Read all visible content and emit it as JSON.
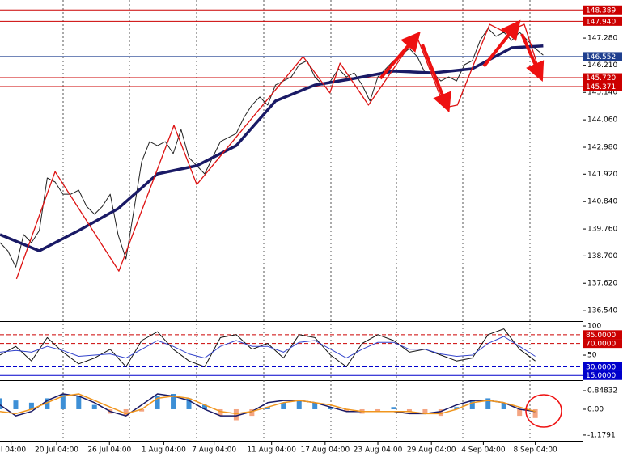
{
  "chart_data": [
    {
      "type": "line",
      "xlim": [
        0,
        74
      ],
      "ylim": [
        136.13,
        148.78
      ],
      "yticks": [
        {
          "value": 147.28,
          "label": "147.280"
        },
        {
          "value": 146.21,
          "label": "146.210"
        },
        {
          "value": 145.14,
          "label": "145.140"
        },
        {
          "value": 144.06,
          "label": "144.060"
        },
        {
          "value": 142.98,
          "label": "142.980"
        },
        {
          "value": 141.92,
          "label": "141.920"
        },
        {
          "value": 140.84,
          "label": "140.840"
        },
        {
          "value": 139.76,
          "label": "139.760"
        },
        {
          "value": 138.7,
          "label": "138.700"
        },
        {
          "value": 137.62,
          "label": "137.620"
        },
        {
          "value": 136.54,
          "label": "136.540"
        }
      ],
      "xticks": [
        {
          "value": 1.4,
          "label": "ul 04:00"
        },
        {
          "value": 7.2,
          "label": "20 Jul 04:00"
        },
        {
          "value": 13.9,
          "label": "26 Jul 04:00"
        },
        {
          "value": 20.8,
          "label": "1 Aug 04:00"
        },
        {
          "value": 27.2,
          "label": "7 Aug 04:00"
        },
        {
          "value": 34.5,
          "label": "11 Aug 04:00"
        },
        {
          "value": 41.3,
          "label": "17 Aug 04:00"
        },
        {
          "value": 48,
          "label": "23 Aug 04:00"
        },
        {
          "value": 54.8,
          "label": "29 Aug 04:00"
        },
        {
          "value": 61.4,
          "label": "4 Sep 04:00"
        },
        {
          "value": 68,
          "label": "8 Sep 04:00"
        }
      ],
      "levels": [
        {
          "value": 148.389,
          "label": "148.389",
          "color": "#cc0000"
        },
        {
          "value": 147.94,
          "label": "147.940",
          "color": "#cc0000"
        },
        {
          "value": 146.552,
          "label": "146.552",
          "color": "#1f3f8f"
        },
        {
          "value": 145.72,
          "label": "145.720",
          "color": "#cc0000"
        },
        {
          "value": 145.371,
          "label": "145.371",
          "color": "#cc0000"
        }
      ],
      "series": [
        {
          "color": "#222222",
          "width": 1,
          "x": [
            0,
            1,
            2,
            3,
            4,
            5,
            6,
            7,
            8,
            9,
            10,
            11,
            12,
            13,
            14,
            15,
            16,
            17,
            18,
            19,
            20,
            21,
            22,
            23,
            24,
            25,
            26,
            27,
            28,
            29,
            30,
            31,
            32,
            33,
            34,
            35,
            36,
            37,
            38,
            39,
            40,
            41,
            42,
            43,
            44,
            45,
            46,
            47,
            48,
            49,
            50,
            51,
            52,
            53,
            54,
            55,
            56,
            57,
            58,
            59,
            60,
            61,
            62,
            63,
            64,
            65,
            66,
            67,
            68,
            69
          ],
          "values": [
            139.22,
            138.9,
            138.26,
            139.54,
            139.22,
            139.7,
            141.77,
            141.61,
            141.13,
            141.13,
            141.29,
            140.65,
            140.34,
            140.65,
            141.13,
            139.54,
            138.58,
            140.49,
            142.41,
            143.2,
            143.04,
            143.2,
            142.73,
            143.68,
            142.57,
            142.25,
            141.93,
            142.57,
            143.2,
            143.36,
            143.52,
            144.16,
            144.64,
            144.96,
            144.64,
            145.43,
            145.59,
            145.75,
            146.23,
            146.39,
            145.75,
            145.43,
            145.59,
            146.07,
            145.75,
            145.91,
            145.43,
            144.8,
            145.75,
            146.07,
            146.39,
            146.61,
            146.87,
            146.55,
            145.91,
            145.91,
            145.59,
            145.75,
            145.59,
            146.23,
            146.39,
            147.19,
            147.66,
            147.35,
            147.51,
            147.19,
            147.51,
            147.19,
            146.87,
            146.61
          ]
        },
        {
          "color": "#1a1a66",
          "width": 3.5,
          "x": [
            0,
            5,
            10,
            15,
            20,
            25,
            30,
            35,
            40,
            45,
            50,
            55,
            60,
            65,
            69
          ],
          "values": [
            139.54,
            138.9,
            139.7,
            140.56,
            141.93,
            142.25,
            143.04,
            144.8,
            145.43,
            145.69,
            145.98,
            145.91,
            146.07,
            146.9,
            146.97
          ]
        },
        {
          "color": "#dd1111",
          "width": 1.3,
          "x": [
            2.1,
            7,
            15.1,
            22.1,
            25,
            38.5,
            41.9,
            43.2,
            46.8,
            52.9,
            56.5,
            58.1,
            62.2,
            64.2,
            66.6,
            68.7
          ],
          "values": [
            137.79,
            142.02,
            138.1,
            143.84,
            141.51,
            146.55,
            145.12,
            146.29,
            144.64,
            147.38,
            144.54,
            144.64,
            147.82,
            147.51,
            147.82,
            145.82
          ]
        }
      ]
    },
    {
      "type": "line",
      "xlim": [
        0,
        74
      ],
      "ylim": [
        7,
        107
      ],
      "yticks": [
        100,
        50
      ],
      "levels": [
        {
          "value": 85,
          "label": "85.0000",
          "color": "#cc0000",
          "dashed": true
        },
        {
          "value": 70,
          "label": "70.0000",
          "color": "#cc0000",
          "dashed": true
        },
        {
          "value": 30,
          "label": "30.0000",
          "color": "#0000cc",
          "dashed": true
        },
        {
          "value": 15,
          "label": "15.0000",
          "color": "#0000cc",
          "dashed": false
        }
      ],
      "series": [
        {
          "color": "#111111",
          "width": 1,
          "x": [
            0,
            2,
            4,
            6,
            8,
            10,
            12,
            14,
            16,
            18,
            20,
            22,
            24,
            26,
            28,
            30,
            32,
            34,
            36,
            38,
            40,
            42,
            44,
            46,
            48,
            50,
            52,
            54,
            56,
            58,
            60,
            62,
            64,
            66,
            68
          ],
          "values": [
            50,
            65,
            40,
            80,
            55,
            35,
            45,
            60,
            30,
            75,
            90,
            60,
            40,
            30,
            80,
            85,
            60,
            70,
            45,
            85,
            80,
            50,
            30,
            70,
            85,
            75,
            55,
            60,
            50,
            40,
            45,
            85,
            95,
            60,
            40
          ]
        },
        {
          "color": "#3344cc",
          "width": 1,
          "x": [
            0,
            2,
            4,
            6,
            8,
            10,
            12,
            14,
            16,
            18,
            20,
            22,
            24,
            26,
            28,
            30,
            32,
            34,
            36,
            38,
            40,
            42,
            44,
            46,
            48,
            50,
            52,
            54,
            56,
            58,
            60,
            62,
            64,
            66,
            68
          ],
          "values": [
            55,
            58,
            55,
            65,
            58,
            48,
            50,
            52,
            45,
            60,
            75,
            65,
            52,
            45,
            65,
            75,
            65,
            65,
            55,
            72,
            75,
            60,
            45,
            60,
            72,
            72,
            60,
            60,
            52,
            48,
            50,
            70,
            82,
            65,
            48
          ]
        }
      ]
    },
    {
      "type": "bar",
      "xlim": [
        0,
        74
      ],
      "ylim": [
        -1.44,
        1.18
      ],
      "yticks": [
        0.84832,
        {
          "value": 0,
          "label": "0.00"
        },
        -1.1791
      ],
      "color": "#3d8fd6",
      "neg_color": "#f4a582",
      "x": [
        0,
        2,
        4,
        6,
        8,
        10,
        12,
        14,
        16,
        18,
        20,
        22,
        24,
        26,
        28,
        30,
        32,
        34,
        36,
        38,
        40,
        42,
        44,
        46,
        48,
        50,
        52,
        54,
        56,
        58,
        60,
        62,
        64,
        66,
        68
      ],
      "values": [
        0.5,
        0.4,
        0.3,
        0.5,
        0.7,
        0.6,
        0.2,
        -0.2,
        -0.3,
        -0.1,
        0.6,
        0.7,
        0.5,
        0.2,
        -0.3,
        -0.5,
        -0.3,
        0.1,
        0.3,
        0.4,
        0.3,
        0.1,
        -0.1,
        -0.2,
        -0.1,
        0.1,
        -0.1,
        -0.2,
        -0.3,
        0.1,
        0.4,
        0.5,
        0.3,
        -0.3,
        -0.4
      ],
      "series": [
        {
          "color": "#1a1a66",
          "width": 1.5,
          "x": [
            0,
            2,
            4,
            6,
            8,
            10,
            12,
            14,
            16,
            18,
            20,
            22,
            24,
            26,
            28,
            30,
            32,
            34,
            36,
            38,
            40,
            42,
            44,
            46,
            48,
            50,
            52,
            54,
            56,
            58,
            60,
            62,
            64,
            66,
            68
          ],
          "values": [
            0.2,
            -0.3,
            -0.1,
            0.4,
            0.7,
            0.6,
            0.3,
            -0.1,
            -0.3,
            0.2,
            0.7,
            0.6,
            0.4,
            0,
            -0.3,
            -0.3,
            -0.1,
            0.3,
            0.4,
            0.4,
            0.3,
            0.1,
            -0.1,
            -0.1,
            -0.1,
            -0.1,
            -0.2,
            -0.2,
            -0.1,
            0.2,
            0.4,
            0.4,
            0.3,
            0,
            -0.1
          ]
        },
        {
          "color": "#f0961e",
          "width": 1.5,
          "x": [
            0,
            2,
            4,
            6,
            8,
            10,
            12,
            14,
            16,
            18,
            20,
            22,
            24,
            26,
            28,
            30,
            32,
            34,
            36,
            38,
            40,
            42,
            44,
            46,
            48,
            50,
            52,
            54,
            56,
            58,
            60,
            62,
            64,
            66,
            68
          ],
          "values": [
            -0.1,
            -0.2,
            0,
            0.3,
            0.6,
            0.7,
            0.4,
            0.1,
            -0.2,
            0,
            0.5,
            0.6,
            0.5,
            0.2,
            -0.1,
            -0.2,
            -0.1,
            0.1,
            0.3,
            0.4,
            0.3,
            0.2,
            0,
            -0.1,
            -0.1,
            -0.1,
            -0.1,
            -0.2,
            -0.2,
            0,
            0.3,
            0.4,
            0.3,
            0.1,
            -0.1
          ]
        }
      ]
    }
  ]
}
